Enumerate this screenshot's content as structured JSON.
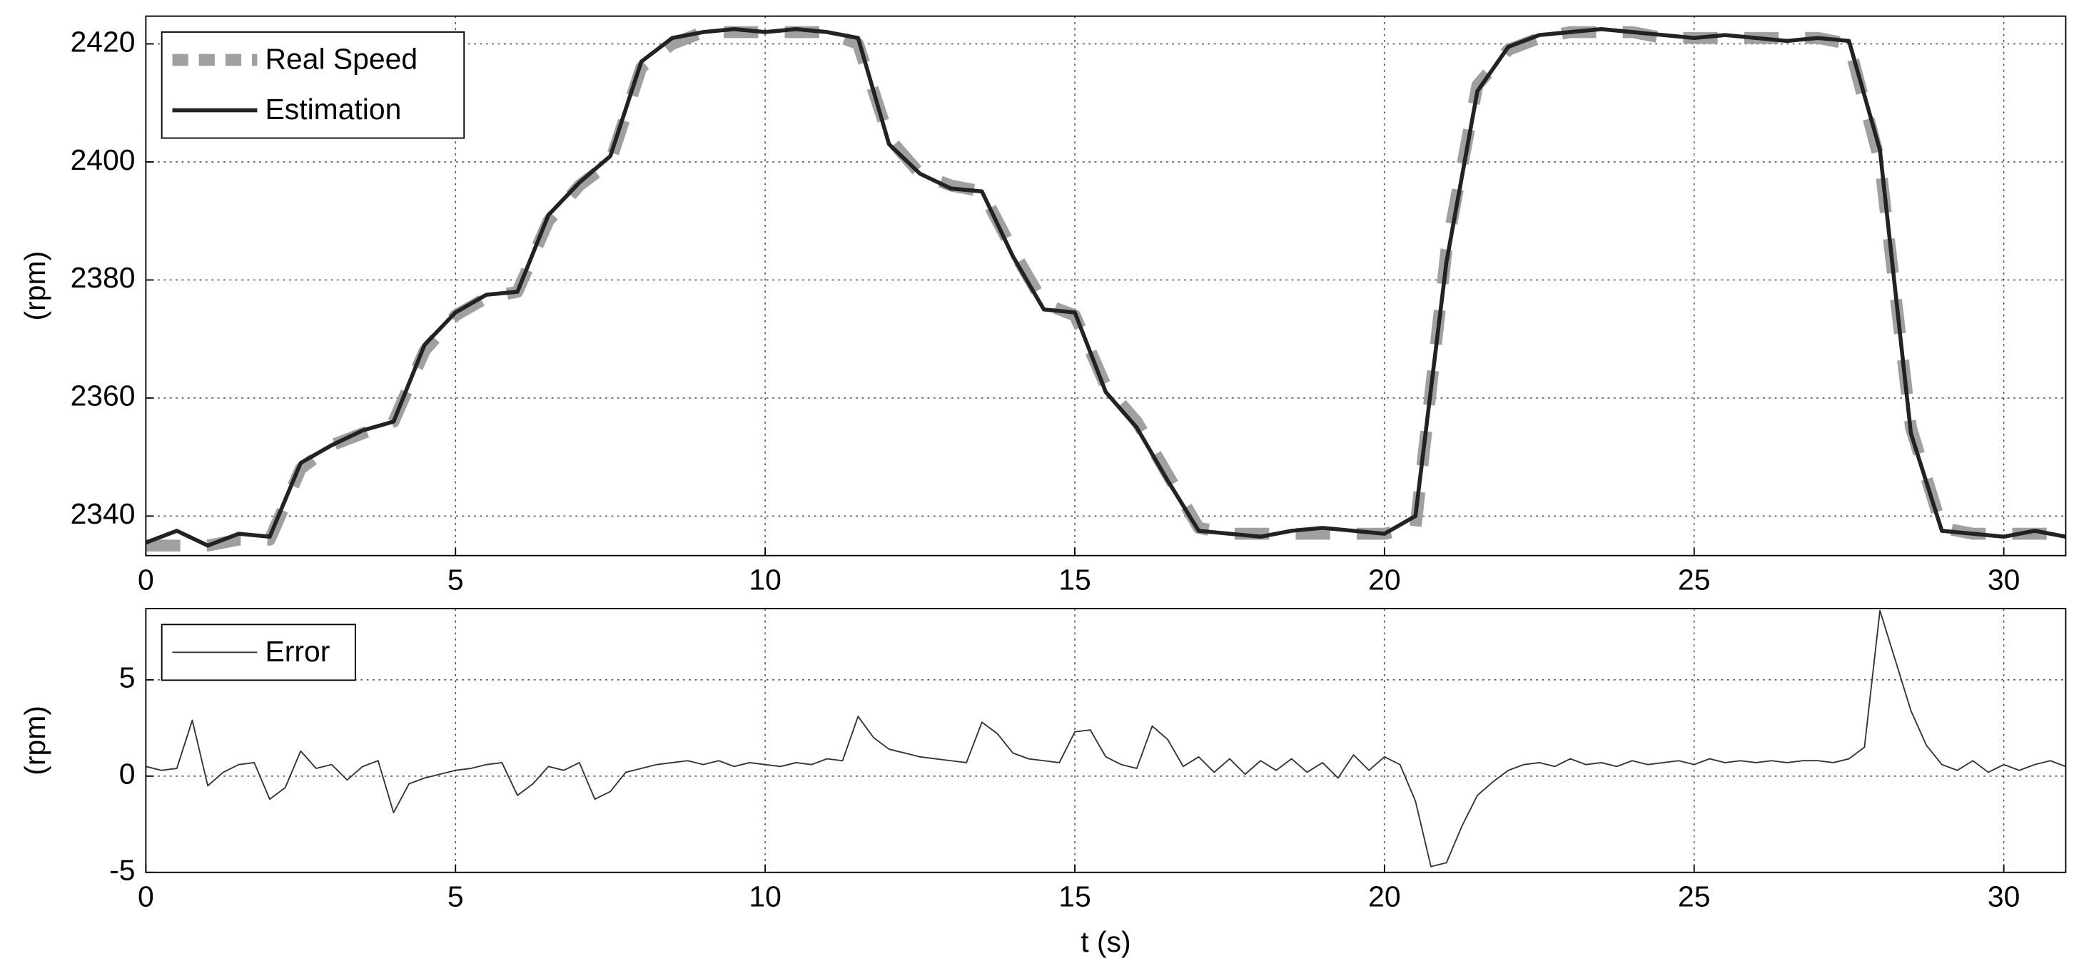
{
  "chart_data": [
    {
      "type": "line",
      "ylabel": "(rpm)",
      "xlim": [
        0,
        31
      ],
      "xticks": [
        0,
        5,
        10,
        15,
        20,
        25,
        30
      ],
      "ylim": [
        2333.3,
        2424.7
      ],
      "yticks": [
        2340,
        2360,
        2380,
        2400,
        2420
      ],
      "grid": true,
      "legend": "upper left",
      "x": [
        0,
        0.5,
        1,
        1.5,
        2,
        2.5,
        3,
        3.5,
        4,
        4.5,
        5,
        5.5,
        6,
        6.5,
        7,
        7.5,
        8,
        8.5,
        9,
        9.5,
        10,
        10.5,
        11,
        11.5,
        12,
        12.5,
        13,
        13.5,
        14,
        14.5,
        15,
        15.5,
        16,
        16.5,
        17,
        17.5,
        18,
        18.5,
        19,
        19.5,
        20,
        20.5,
        21,
        21.5,
        22,
        22.5,
        23,
        23.5,
        24,
        24.5,
        25,
        25.5,
        26,
        26.5,
        27,
        27.5,
        28,
        28.5,
        29,
        29.5,
        30,
        30.5,
        31
      ],
      "series": [
        {
          "name": "Real Speed",
          "color": "#a0a0a0",
          "linestyle": "dashed",
          "values": [
            2335,
            2335,
            2335,
            2336,
            2336,
            2348,
            2352,
            2354,
            2356,
            2368,
            2374,
            2377,
            2378,
            2390,
            2396,
            2400,
            2416,
            2420,
            2422,
            2422,
            2422,
            2422,
            2422,
            2420,
            2404,
            2398,
            2396,
            2395,
            2385,
            2376,
            2374,
            2362,
            2356,
            2347,
            2338,
            2337,
            2337,
            2337,
            2337,
            2337,
            2337,
            2338,
            2385,
            2413,
            2419,
            2421,
            2422,
            2422,
            2422,
            2421,
            2421,
            2421,
            2421,
            2421,
            2421,
            2420,
            2400,
            2355,
            2338,
            2337,
            2337,
            2337,
            2337
          ]
        },
        {
          "name": "Estimation",
          "color": "#222222",
          "linestyle": "solid",
          "values": [
            2335.5,
            2337.5,
            2335,
            2337,
            2336.5,
            2349,
            2352,
            2354.5,
            2356,
            2369,
            2374.5,
            2377.5,
            2378,
            2391,
            2396.5,
            2401,
            2417,
            2421,
            2422,
            2422.5,
            2422,
            2422.5,
            2422,
            2421,
            2403,
            2398,
            2395.5,
            2395,
            2384,
            2375,
            2374.5,
            2361,
            2355,
            2346,
            2337.5,
            2337,
            2336.5,
            2337.5,
            2338,
            2337.5,
            2337,
            2340,
            2383,
            2412,
            2419.5,
            2421.5,
            2422,
            2422.5,
            2422,
            2421.5,
            2421,
            2421.5,
            2421,
            2420.5,
            2421,
            2420.5,
            2402,
            2354,
            2337.5,
            2337,
            2336.5,
            2337.5,
            2336.5
          ]
        }
      ]
    },
    {
      "type": "line",
      "xlabel": "t (s)",
      "ylabel": "(rpm)",
      "xlim": [
        0,
        31
      ],
      "xticks": [
        0,
        5,
        10,
        15,
        20,
        25,
        30
      ],
      "ylim": [
        -5,
        8.7
      ],
      "yticks": [
        -5,
        0,
        5
      ],
      "grid": true,
      "legend": "upper left",
      "x": [
        0,
        0.25,
        0.5,
        0.75,
        1,
        1.25,
        1.5,
        1.75,
        2,
        2.25,
        2.5,
        2.75,
        3,
        3.25,
        3.5,
        3.75,
        4,
        4.25,
        4.5,
        4.75,
        5,
        5.25,
        5.5,
        5.75,
        6,
        6.25,
        6.5,
        6.75,
        7,
        7.25,
        7.5,
        7.75,
        8,
        8.25,
        8.5,
        8.75,
        9,
        9.25,
        9.5,
        9.75,
        10,
        10.25,
        10.5,
        10.75,
        11,
        11.25,
        11.5,
        11.75,
        12,
        12.25,
        12.5,
        12.75,
        13,
        13.25,
        13.5,
        13.75,
        14,
        14.25,
        14.5,
        14.75,
        15,
        15.25,
        15.5,
        15.75,
        16,
        16.25,
        16.5,
        16.75,
        17,
        17.25,
        17.5,
        17.75,
        18,
        18.25,
        18.5,
        18.75,
        19,
        19.25,
        19.5,
        19.75,
        20,
        20.25,
        20.5,
        20.75,
        21,
        21.25,
        21.5,
        21.75,
        22,
        22.25,
        22.5,
        22.75,
        23,
        23.25,
        23.5,
        23.75,
        24,
        24.25,
        24.5,
        24.75,
        25,
        25.25,
        25.5,
        25.75,
        26,
        26.25,
        26.5,
        26.75,
        27,
        27.25,
        27.5,
        27.75,
        28,
        28.25,
        28.5,
        28.75,
        29,
        29.25,
        29.5,
        29.75,
        30,
        30.25,
        30.5,
        30.75,
        31
      ],
      "series": [
        {
          "name": "Error",
          "color": "#333333",
          "linestyle": "solid",
          "values": [
            0.5,
            0.3,
            0.4,
            2.9,
            -0.5,
            0.2,
            0.6,
            0.7,
            -1.2,
            -0.6,
            1.3,
            0.4,
            0.6,
            -0.2,
            0.5,
            0.8,
            -1.9,
            -0.4,
            -0.1,
            0.1,
            0.3,
            0.4,
            0.6,
            0.7,
            -1.0,
            -0.4,
            0.5,
            0.3,
            0.7,
            -1.2,
            -0.8,
            0.2,
            0.4,
            0.6,
            0.7,
            0.8,
            0.6,
            0.8,
            0.5,
            0.7,
            0.6,
            0.5,
            0.7,
            0.6,
            0.9,
            0.8,
            3.1,
            2.0,
            1.4,
            1.2,
            1.0,
            0.9,
            0.8,
            0.7,
            2.8,
            2.2,
            1.2,
            0.9,
            0.8,
            0.7,
            2.3,
            2.4,
            1.0,
            0.6,
            0.4,
            2.6,
            1.9,
            0.5,
            1.0,
            0.2,
            0.9,
            0.1,
            0.8,
            0.3,
            0.9,
            0.2,
            0.7,
            -0.1,
            1.1,
            0.3,
            1.0,
            0.6,
            -1.3,
            -4.7,
            -4.5,
            -2.6,
            -1.0,
            -0.3,
            0.3,
            0.6,
            0.7,
            0.5,
            0.9,
            0.6,
            0.7,
            0.5,
            0.8,
            0.6,
            0.7,
            0.8,
            0.6,
            0.9,
            0.7,
            0.8,
            0.7,
            0.8,
            0.7,
            0.8,
            0.8,
            0.7,
            0.9,
            1.5,
            8.6,
            6.0,
            3.4,
            1.6,
            0.6,
            0.3,
            0.8,
            0.2,
            0.6,
            0.3,
            0.6,
            0.8,
            0.5
          ]
        }
      ]
    }
  ]
}
